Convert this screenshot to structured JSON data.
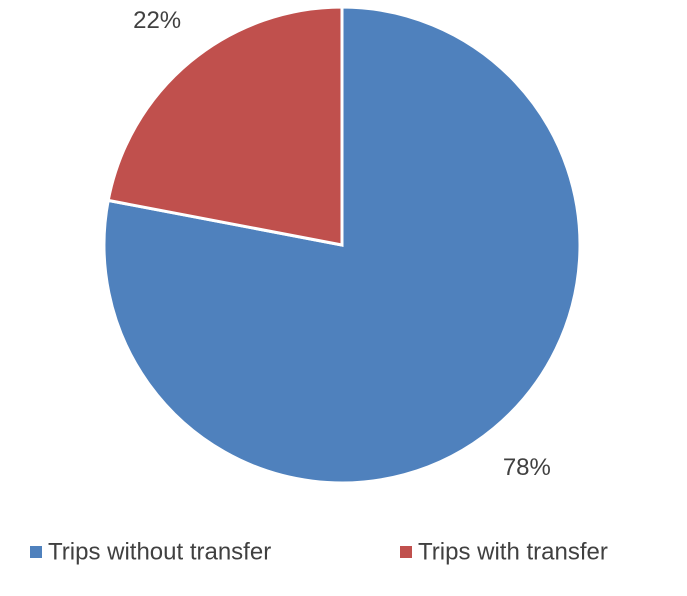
{
  "chart_data": {
    "type": "pie",
    "categories": [
      "Trips without transfer",
      "Trips with transfer"
    ],
    "values": [
      78,
      22
    ],
    "value_labels": [
      "78%",
      "22%"
    ],
    "colors": [
      "#4f81bd",
      "#c0504d"
    ],
    "legend": "bottom"
  }
}
